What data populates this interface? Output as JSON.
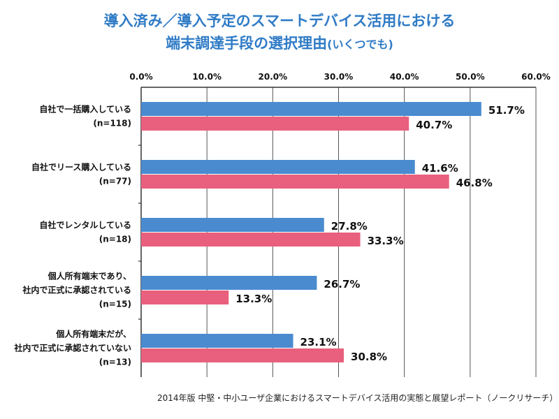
{
  "title": {
    "line1": "導入済み／導入予定のスマートデバイス活用における",
    "line2": "端末調達手段の選択理由",
    "line2_note": "(いくつでも)"
  },
  "source": "2014年版 中堅・中小ユーザ企業におけるスマートデバイス活用の実態と展望レポート（ノークリサーチ）",
  "colors": {
    "series_blue": "#4a8bd0",
    "series_pink": "#e8607d",
    "axis": "#333333",
    "grid": "#555555"
  },
  "chart_data": {
    "type": "bar",
    "orientation": "horizontal",
    "xlim": [
      0,
      60
    ],
    "ticks": [
      "0.0%",
      "10.0%",
      "20.0%",
      "30.0%",
      "40.0%",
      "50.0%",
      "60.0%"
    ],
    "tick_values": [
      0,
      10,
      20,
      30,
      40,
      50,
      60
    ],
    "grid": true,
    "categories": [
      {
        "lines": [
          "自社で一括購入している",
          "(n=118)"
        ]
      },
      {
        "lines": [
          "自社でリース購入している",
          "(n=77)"
        ]
      },
      {
        "lines": [
          "自社でレンタルしている",
          "(n=18)"
        ]
      },
      {
        "lines": [
          "個人所有端末であり、",
          "社内で正式に承認されている",
          "(n=15)"
        ]
      },
      {
        "lines": [
          "個人所有端末だが、",
          "社内で正式に承認されていない",
          "(n=13)"
        ]
      }
    ],
    "series": [
      {
        "values": [
          51.7,
          41.6,
          27.8,
          26.7,
          23.1
        ],
        "labels": [
          "51.7%",
          "41.6%",
          "27.8%",
          "26.7%",
          "23.1%"
        ],
        "color": "#4a8bd0"
      },
      {
        "values": [
          40.7,
          46.8,
          33.3,
          13.3,
          30.8
        ],
        "labels": [
          "40.7%",
          "46.8%",
          "33.3%",
          "13.3%",
          "30.8%"
        ],
        "color": "#e8607d"
      }
    ]
  }
}
